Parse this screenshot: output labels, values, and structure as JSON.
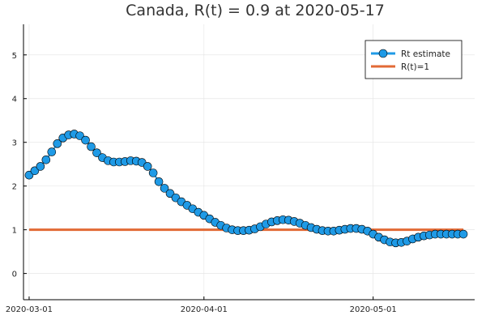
{
  "chart_data": {
    "type": "line",
    "title": "Canada, R(t) = 0.9 at 2020-05-17",
    "xlabel": "",
    "ylabel": "",
    "x_start_date": "2020-03-01",
    "x_end_date": "2020-05-17",
    "xlim": [
      "2020-02-29",
      "2020-05-19"
    ],
    "ylim": [
      -0.6,
      5.7
    ],
    "x_ticks": [
      {
        "date": "2020-03-01",
        "label": "2020-03-01"
      },
      {
        "date": "2020-04-01",
        "label": "2020-04-01"
      },
      {
        "date": "2020-05-01",
        "label": "2020-05-01"
      }
    ],
    "y_ticks": [
      0,
      1,
      2,
      3,
      4,
      5
    ],
    "grid": true,
    "legend_position": "top-right",
    "series": [
      {
        "name": "Rt estimate",
        "color": "#1f9ae6",
        "marker": "circle",
        "values": [
          2.25,
          2.35,
          2.45,
          2.6,
          2.78,
          2.97,
          3.1,
          3.17,
          3.19,
          3.15,
          3.05,
          2.9,
          2.76,
          2.65,
          2.58,
          2.55,
          2.55,
          2.56,
          2.58,
          2.57,
          2.54,
          2.45,
          2.3,
          2.1,
          1.95,
          1.83,
          1.73,
          1.64,
          1.56,
          1.48,
          1.4,
          1.33,
          1.25,
          1.17,
          1.1,
          1.04,
          1.0,
          0.98,
          0.98,
          0.99,
          1.02,
          1.07,
          1.13,
          1.18,
          1.21,
          1.23,
          1.22,
          1.19,
          1.15,
          1.1,
          1.05,
          1.01,
          0.98,
          0.97,
          0.97,
          0.99,
          1.01,
          1.03,
          1.03,
          1.01,
          0.97,
          0.9,
          0.83,
          0.77,
          0.72,
          0.7,
          0.71,
          0.74,
          0.79,
          0.83,
          0.86,
          0.88,
          0.9,
          0.9,
          0.9,
          0.9,
          0.9,
          0.9
        ]
      },
      {
        "name": "R(t)=1",
        "color": "#e26a35",
        "marker": "none",
        "values": [
          1,
          1
        ]
      }
    ]
  }
}
